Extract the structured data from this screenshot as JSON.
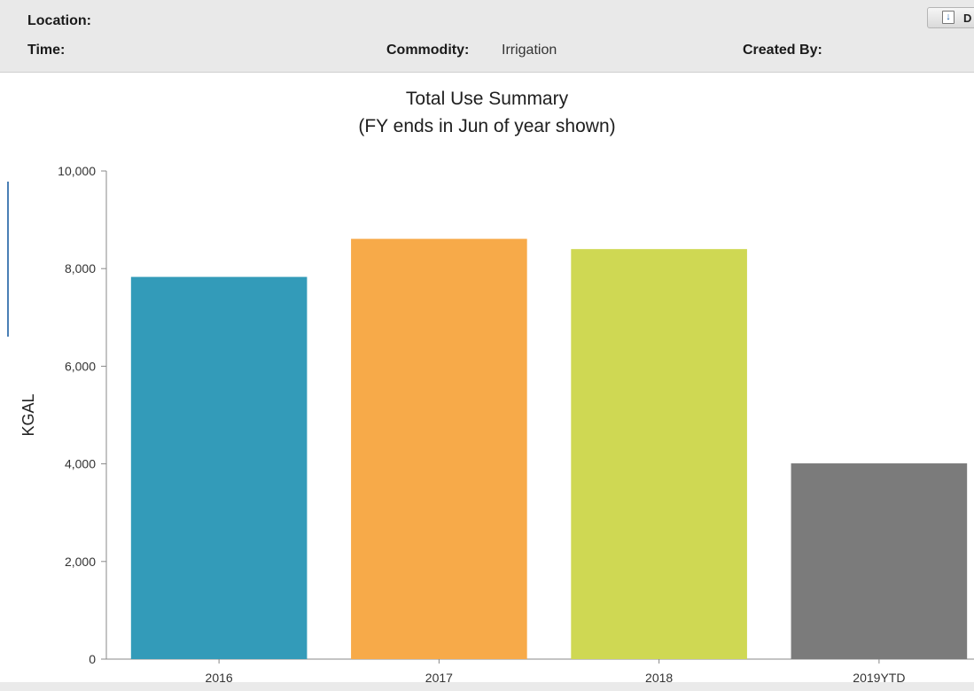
{
  "header": {
    "location_label": "Location:",
    "location_value": "",
    "time_label": "Time:",
    "time_value": "",
    "commodity_label": "Commodity:",
    "commodity_value": "Irrigation",
    "created_by_label": "Created By:",
    "created_by_value": "",
    "export_label": "D",
    "export_icon": "download-icon"
  },
  "chart_data": {
    "type": "bar",
    "title": "Total Use Summary",
    "subtitle": "(FY ends in Jun of year shown)",
    "xlabel": "",
    "ylabel": "KGAL",
    "categories": [
      "2016",
      "2017",
      "2018",
      "2019YTD"
    ],
    "values": [
      7830,
      8610,
      8400,
      4010
    ],
    "colors": [
      "#339bb9",
      "#f7aa49",
      "#cfd853",
      "#7b7b7b"
    ],
    "ylim": [
      0,
      10000
    ],
    "yticks": [
      0,
      2000,
      4000,
      6000,
      8000,
      10000
    ],
    "ytick_labels": [
      "0",
      "2,000",
      "4,000",
      "6,000",
      "8,000",
      "10,000"
    ],
    "grid": false,
    "legend": "none"
  }
}
